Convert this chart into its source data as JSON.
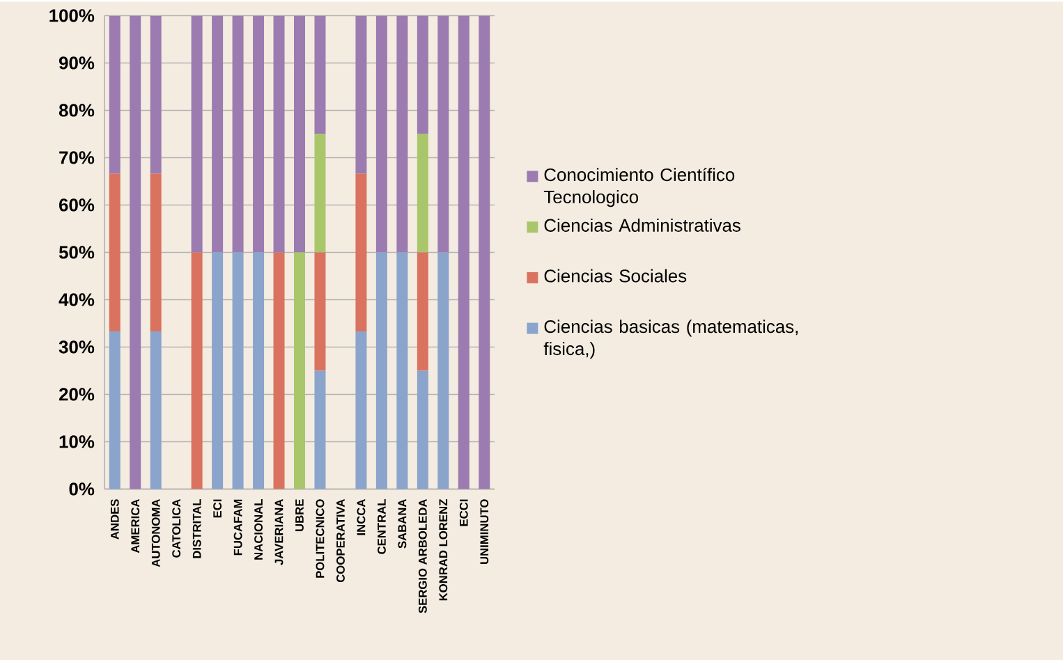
{
  "chart_data": {
    "type": "bar",
    "stacked": true,
    "categories": [
      "ANDES",
      "AMERICA",
      "AUTONOMA",
      "CATOLICA",
      "DISTRITAL",
      "ECI",
      "FUCAFAM",
      "NACIONAL",
      "JAVERIANA",
      "UBRE",
      "POLITECNICO",
      "COOPERATIVA",
      "INCCA",
      "CENTRAL",
      "SABANA",
      "SERGIO ARBOLEDA",
      "KONRAD LORENZ",
      "ECCI",
      "UNIMINUTO"
    ],
    "series": [
      {
        "name": "Ciencias basicas (matematicas, fisica,)",
        "color": "#8aa4cc",
        "values": [
          33.3,
          0,
          33.3,
          null,
          0,
          50,
          50,
          50,
          0,
          0,
          25,
          null,
          33.3,
          50,
          50,
          25,
          50,
          0,
          0
        ]
      },
      {
        "name": "Ciencias Sociales",
        "color": "#d9735f",
        "values": [
          33.3,
          0,
          33.3,
          null,
          50,
          0,
          0,
          0,
          50,
          0,
          25,
          null,
          33.3,
          0,
          0,
          25,
          0,
          0,
          0
        ]
      },
      {
        "name": "Ciencias Administrativas",
        "color": "#a9c76a",
        "values": [
          0,
          0,
          0,
          null,
          0,
          0,
          0,
          0,
          0,
          50,
          25,
          null,
          0,
          0,
          0,
          25,
          0,
          0,
          0
        ]
      },
      {
        "name": "Conocimiento Científico Tecnologico",
        "color": "#9b7bb0",
        "values": [
          33.3,
          100,
          33.3,
          null,
          50,
          50,
          50,
          50,
          50,
          50,
          25,
          null,
          33.3,
          50,
          50,
          25,
          50,
          100,
          100
        ]
      }
    ],
    "ylim": [
      0,
      100
    ],
    "yticks": [
      {
        "value": 0,
        "label": "0%"
      },
      {
        "value": 10,
        "label": "10%"
      },
      {
        "value": 20,
        "label": "20%"
      },
      {
        "value": 30,
        "label": "30%"
      },
      {
        "value": 40,
        "label": "40%"
      },
      {
        "value": 50,
        "label": "50%"
      },
      {
        "value": 60,
        "label": "60%"
      },
      {
        "value": 70,
        "label": "70%"
      },
      {
        "value": 80,
        "label": "80%"
      },
      {
        "value": 90,
        "label": "90%"
      },
      {
        "value": 100,
        "label": "100%"
      }
    ],
    "grid": "y",
    "legend": "right"
  }
}
